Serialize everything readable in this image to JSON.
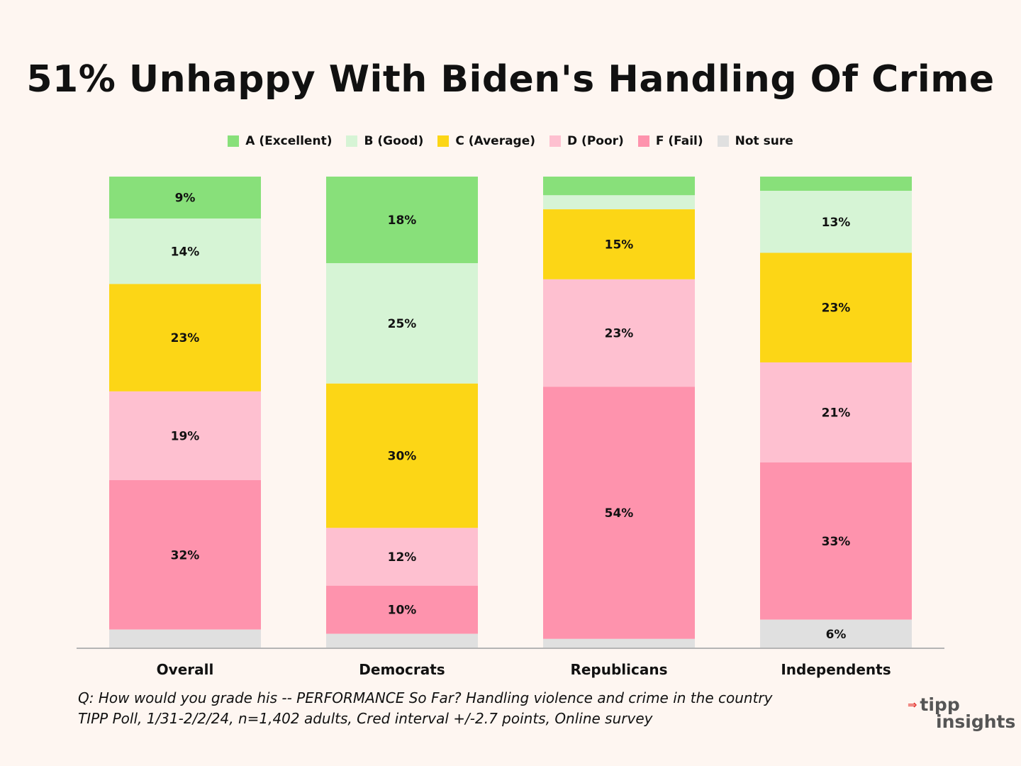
{
  "chart_data": {
    "type": "bar",
    "stacked": true,
    "title": "51% Unhappy With Biden's Handling Of Crime",
    "categories": [
      "Overall",
      "Democrats",
      "Republicans",
      "Independents"
    ],
    "series": [
      {
        "name": "A (Excellent)",
        "color": "#88e07a",
        "values": [
          9,
          18,
          4,
          3
        ],
        "labels": [
          "9%",
          "18%",
          "",
          ""
        ]
      },
      {
        "name": "B (Good)",
        "color": "#d6f4d5",
        "values": [
          14,
          25,
          3,
          13
        ],
        "labels": [
          "14%",
          "25%",
          "",
          "13%"
        ]
      },
      {
        "name": "C (Average)",
        "color": "#fcd616",
        "values": [
          23,
          30,
          15,
          23
        ],
        "labels": [
          "23%",
          "30%",
          "15%",
          "23%"
        ]
      },
      {
        "name": "D (Poor)",
        "color": "#fec0d0",
        "values": [
          19,
          12,
          23,
          21
        ],
        "labels": [
          "19%",
          "12%",
          "23%",
          "21%"
        ]
      },
      {
        "name": "F (Fail)",
        "color": "#fe93ad",
        "values": [
          32,
          10,
          54,
          33
        ],
        "labels": [
          "32%",
          "10%",
          "54%",
          "33%"
        ]
      },
      {
        "name": "Not sure",
        "color": "#e0e0e0",
        "values": [
          4,
          3,
          2,
          6
        ],
        "labels": [
          "",
          "",
          "",
          "6%"
        ]
      }
    ],
    "legend_position": "top-center",
    "grid": false
  },
  "footnote": {
    "line1": "Q:  How would you grade his -- PERFORMANCE So Far? Handling violence and crime in the country",
    "line2": "TIPP Poll, 1/31-2/2/24, n=1,402 adults, Cred interval +/-2.7 points, Online survey"
  },
  "logo": {
    "top": "tipp",
    "bottom": "insights"
  }
}
